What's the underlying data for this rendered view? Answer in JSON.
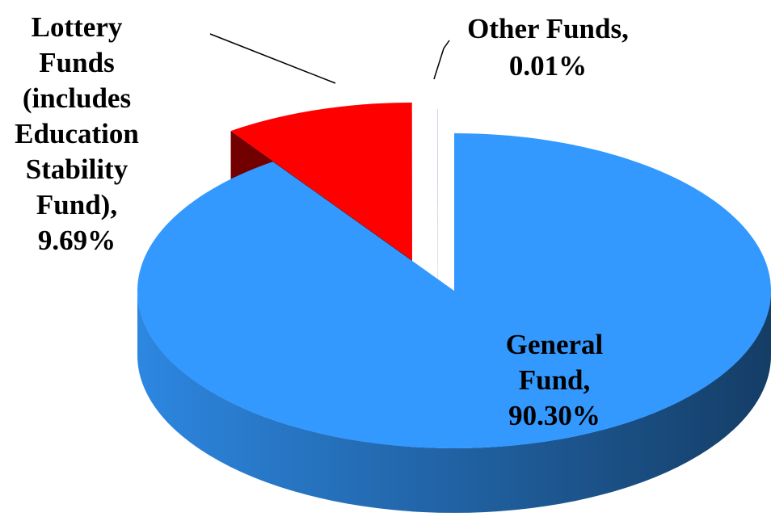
{
  "chart_data": {
    "type": "pie3d",
    "categories": [
      "General Fund,",
      "Lottery Funds (includes Education Stability Fund),",
      "Other Funds,"
    ],
    "values": [
      90.3,
      9.69,
      0.01
    ],
    "value_labels": [
      "90.30%",
      "9.69%",
      "0.01%"
    ],
    "colors": [
      "#3399ff",
      "#ff0000",
      "#7f3fbf"
    ]
  }
}
